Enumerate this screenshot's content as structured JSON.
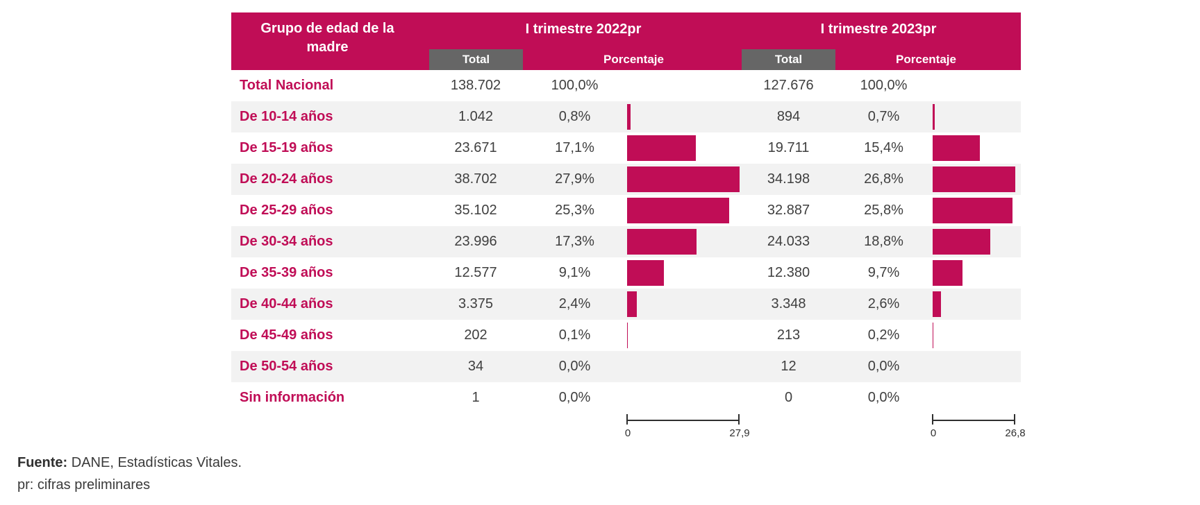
{
  "colors": {
    "accent": "#C00D56",
    "total_box": "#666666",
    "row_alt": "#F2F2F2",
    "value_text": "#3F3F3F",
    "axis": "#2F2F2F"
  },
  "header": {
    "group_col_line1": "Grupo de edad de la",
    "group_col_line2": "madre",
    "period_2022": "I trimestre 2022pr",
    "period_2023": "I trimestre 2023pr",
    "sub_total": "Total",
    "sub_pct": "Porcentaje"
  },
  "chart_data": {
    "type": "table",
    "description": "Table of births by mother's age group with embedded horizontal bar charts for percentage, I trimestre 2022pr vs 2023pr",
    "embedded_bar_type": "bar",
    "categories": [
      "Total Nacional",
      "De 10-14 años",
      "De 15-19 años",
      "De 20-24 años",
      "De 25-29 años",
      "De 30-34 años",
      "De 35-39 años",
      "De 40-44 años",
      "De 45-49 años",
      "De 50-54 años",
      "Sin información"
    ],
    "series": [
      {
        "name": "Total 2022",
        "values": [
          138702,
          1042,
          23671,
          38702,
          35102,
          23996,
          12577,
          3375,
          202,
          34,
          1
        ]
      },
      {
        "name": "Porcentaje 2022",
        "values": [
          100.0,
          0.8,
          17.1,
          27.9,
          25.3,
          17.3,
          9.1,
          2.4,
          0.1,
          0.0,
          0.0
        ]
      },
      {
        "name": "Total 2023",
        "values": [
          127676,
          894,
          19711,
          34198,
          32887,
          24033,
          12380,
          3348,
          213,
          12,
          0
        ]
      },
      {
        "name": "Porcentaje 2023",
        "values": [
          100.0,
          0.7,
          15.4,
          26.8,
          25.8,
          18.8,
          9.7,
          2.6,
          0.2,
          0.0,
          0.0
        ]
      }
    ],
    "rows": [
      {
        "label": "Total Nacional",
        "total_2022": "138.702",
        "pct_2022": "100,0%",
        "bar_2022": null,
        "total_2023": "127.676",
        "pct_2023": "100,0%",
        "bar_2023": null
      },
      {
        "label": "De 10-14 años",
        "total_2022": "1.042",
        "pct_2022": "0,8%",
        "bar_2022": 0.8,
        "total_2023": "894",
        "pct_2023": "0,7%",
        "bar_2023": 0.7
      },
      {
        "label": "De 15-19 años",
        "total_2022": "23.671",
        "pct_2022": "17,1%",
        "bar_2022": 17.1,
        "total_2023": "19.711",
        "pct_2023": "15,4%",
        "bar_2023": 15.4
      },
      {
        "label": "De 20-24 años",
        "total_2022": "38.702",
        "pct_2022": "27,9%",
        "bar_2022": 27.9,
        "total_2023": "34.198",
        "pct_2023": "26,8%",
        "bar_2023": 26.8
      },
      {
        "label": "De 25-29 años",
        "total_2022": "35.102",
        "pct_2022": "25,3%",
        "bar_2022": 25.3,
        "total_2023": "32.887",
        "pct_2023": "25,8%",
        "bar_2023": 25.8
      },
      {
        "label": "De 30-34 años",
        "total_2022": "23.996",
        "pct_2022": "17,3%",
        "bar_2022": 17.3,
        "total_2023": "24.033",
        "pct_2023": "18,8%",
        "bar_2023": 18.8
      },
      {
        "label": "De 35-39 años",
        "total_2022": "12.577",
        "pct_2022": "9,1%",
        "bar_2022": 9.1,
        "total_2023": "12.380",
        "pct_2023": "9,7%",
        "bar_2023": 9.7
      },
      {
        "label": "De 40-44 años",
        "total_2022": "3.375",
        "pct_2022": "2,4%",
        "bar_2022": 2.4,
        "total_2023": "3.348",
        "pct_2023": "2,6%",
        "bar_2023": 2.6
      },
      {
        "label": "De 45-49 años",
        "total_2022": "202",
        "pct_2022": "0,1%",
        "bar_2022": 0.1,
        "total_2023": "213",
        "pct_2023": "0,2%",
        "bar_2023": 0.2
      },
      {
        "label": "De 50-54 años",
        "total_2022": "34",
        "pct_2022": "0,0%",
        "bar_2022": 0,
        "total_2023": "12",
        "pct_2023": "0,0%",
        "bar_2023": 0
      },
      {
        "label": "Sin información",
        "total_2022": "1",
        "pct_2022": "0,0%",
        "bar_2022": 0,
        "total_2023": "0",
        "pct_2023": "0,0%",
        "bar_2023": 0
      }
    ],
    "axis_2022": {
      "min_label": "0",
      "max_label": "27,9",
      "max_value": 27.9
    },
    "axis_2023": {
      "min_label": "0",
      "max_label": "26,8",
      "max_value": 26.8
    },
    "legend_position": "none",
    "grid": false
  },
  "footer": {
    "source_bold": "Fuente:",
    "source_rest": " DANE, Estadísticas Vitales.",
    "note": "pr: cifras preliminares"
  }
}
